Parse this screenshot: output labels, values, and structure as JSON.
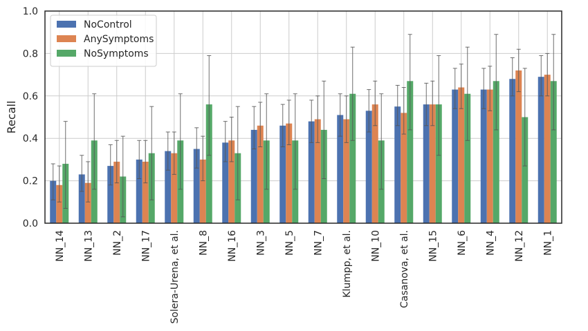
{
  "chart_data": {
    "type": "bar",
    "title": "",
    "xlabel": "",
    "ylabel": "Recall",
    "ylim": [
      0,
      1.0
    ],
    "yticks": [
      "0.0",
      "0.2",
      "0.4",
      "0.6",
      "0.8",
      "1.0"
    ],
    "ytick_values": [
      0,
      0.2,
      0.4,
      0.6,
      0.8,
      1.0
    ],
    "grid": true,
    "legend_position": "top-left",
    "categories": [
      "NN_14",
      "NN_13",
      "NN_2",
      "NN_17",
      "Solera-Urena, et al.",
      "NN_8",
      "NN_16",
      "NN_3",
      "NN_5",
      "NN_7",
      "Klumpp, et al.",
      "NN_10",
      "Casanova, et al.",
      "NN_15",
      "NN_6",
      "NN_4",
      "NN_12",
      "NN_1"
    ],
    "series": [
      {
        "name": "NoControl",
        "color": "#4c72b0",
        "values": [
          0.2,
          0.23,
          0.27,
          0.3,
          0.34,
          0.35,
          0.38,
          0.44,
          0.46,
          0.48,
          0.51,
          0.53,
          0.55,
          0.56,
          0.63,
          0.63,
          0.68,
          0.69
        ],
        "err_low": [
          0.11,
          0.15,
          0.18,
          0.21,
          0.25,
          0.26,
          0.29,
          0.35,
          0.36,
          0.38,
          0.41,
          0.43,
          0.46,
          0.46,
          0.54,
          0.54,
          0.6,
          0.6
        ],
        "err_high": [
          0.28,
          0.32,
          0.37,
          0.39,
          0.43,
          0.45,
          0.48,
          0.55,
          0.56,
          0.58,
          0.61,
          0.63,
          0.65,
          0.66,
          0.73,
          0.73,
          0.78,
          0.79
        ]
      },
      {
        "name": "AnySymptoms",
        "color": "#dd8452",
        "values": [
          0.18,
          0.19,
          0.29,
          0.29,
          0.33,
          0.3,
          0.39,
          0.46,
          0.47,
          0.49,
          0.49,
          0.56,
          0.52,
          0.56,
          0.64,
          0.63,
          0.72,
          0.7
        ],
        "err_low": [
          0.1,
          0.1,
          0.19,
          0.19,
          0.23,
          0.2,
          0.29,
          0.36,
          0.37,
          0.38,
          0.38,
          0.46,
          0.42,
          0.46,
          0.54,
          0.53,
          0.62,
          0.6
        ],
        "err_high": [
          0.27,
          0.29,
          0.39,
          0.39,
          0.43,
          0.41,
          0.5,
          0.57,
          0.58,
          0.6,
          0.6,
          0.67,
          0.64,
          0.67,
          0.75,
          0.74,
          0.82,
          0.8
        ]
      },
      {
        "name": "NoSymptoms",
        "color": "#55a868",
        "values": [
          0.28,
          0.39,
          0.22,
          0.33,
          0.39,
          0.56,
          0.33,
          0.39,
          0.39,
          0.44,
          0.61,
          0.39,
          0.67,
          0.56,
          0.61,
          0.67,
          0.5,
          0.67
        ],
        "err_low": [
          0.07,
          0.16,
          0.03,
          0.11,
          0.16,
          0.32,
          0.11,
          0.16,
          0.16,
          0.21,
          0.39,
          0.16,
          0.44,
          0.32,
          0.39,
          0.44,
          0.27,
          0.44
        ],
        "err_high": [
          0.48,
          0.61,
          0.41,
          0.55,
          0.61,
          0.79,
          0.55,
          0.61,
          0.61,
          0.67,
          0.83,
          0.61,
          0.89,
          0.79,
          0.83,
          0.89,
          0.73,
          0.89
        ]
      }
    ]
  }
}
